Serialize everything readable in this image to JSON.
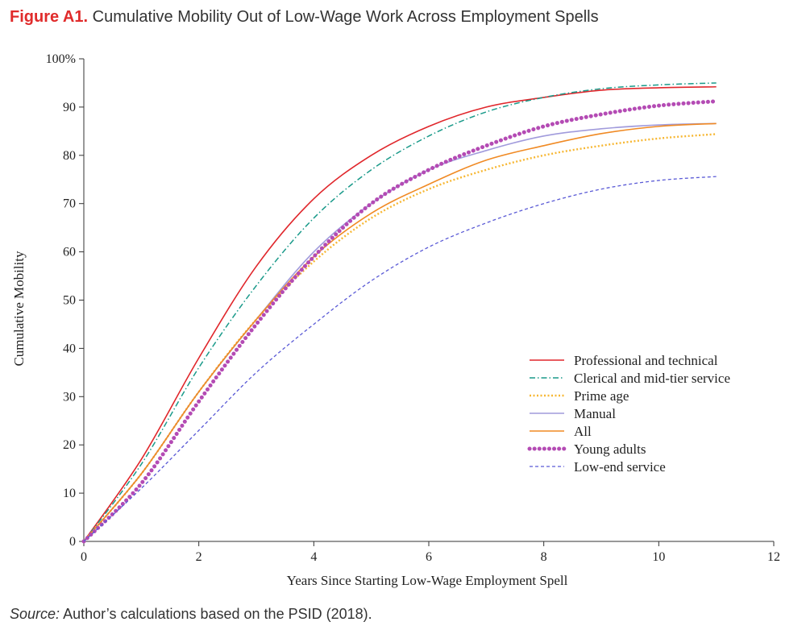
{
  "figure": {
    "label": "Figure A1.",
    "title": "Cumulative Mobility Out of Low-Wage Work Across Employment Spells"
  },
  "source": {
    "label": "Source:",
    "text": "Author’s calculations based on the PSID (2018)."
  },
  "chart_data": {
    "type": "line",
    "title": "Cumulative Mobility Out of Low-Wage Work Across Employment Spells",
    "xlabel": "Years Since Starting Low-Wage Employment Spell",
    "ylabel": "Cumulative Mobility",
    "xlim": [
      0,
      12
    ],
    "ylim": [
      0,
      100
    ],
    "x_ticks": [
      "0",
      "2",
      "4",
      "6",
      "8",
      "10",
      "12"
    ],
    "y_ticks": [
      "0",
      "10",
      "20",
      "30",
      "40",
      "50",
      "60",
      "70",
      "80",
      "90",
      "100%"
    ],
    "grid": false,
    "legend_position": "lower-right",
    "x": [
      0,
      1,
      2,
      3,
      4,
      5,
      6,
      7,
      8,
      9,
      10,
      11
    ],
    "series": [
      {
        "name": "Professional and technical",
        "color": "#e0262b",
        "style": "solid",
        "values": [
          0,
          17,
          38,
          57,
          71,
          80,
          86,
          90,
          92,
          93.5,
          94,
          94.2
        ]
      },
      {
        "name": "Clerical and mid-tier service",
        "color": "#1a9a8a",
        "style": "dashdot",
        "values": [
          0,
          16,
          36,
          53,
          67,
          77,
          84,
          89,
          92,
          93.8,
          94.6,
          95
        ]
      },
      {
        "name": "Prime age",
        "color": "#f7b733",
        "style": "dotted",
        "values": [
          0,
          14,
          31,
          46,
          58,
          67,
          73,
          77,
          80,
          82,
          83.5,
          84.4
        ]
      },
      {
        "name": "Manual",
        "color": "#a19bdc",
        "style": "solid",
        "values": [
          0,
          14,
          31,
          46,
          60,
          70,
          77,
          81,
          84,
          85.5,
          86.3,
          86.6
        ]
      },
      {
        "name": "All",
        "color": "#f08a24",
        "style": "solid",
        "values": [
          0,
          14,
          31,
          46,
          59,
          68,
          74,
          79,
          82,
          84.5,
          86,
          86.6
        ]
      },
      {
        "name": "Young adults",
        "color": "#b44bb4",
        "style": "dotted-bold",
        "values": [
          0,
          12,
          29,
          45,
          59,
          70,
          77,
          82,
          86,
          88.5,
          90.3,
          91.2
        ]
      },
      {
        "name": "Low-end service",
        "color": "#5a5ad6",
        "style": "dashed",
        "values": [
          0,
          11,
          23,
          35,
          45,
          54,
          61,
          66,
          70,
          73,
          74.8,
          75.6
        ]
      }
    ]
  }
}
